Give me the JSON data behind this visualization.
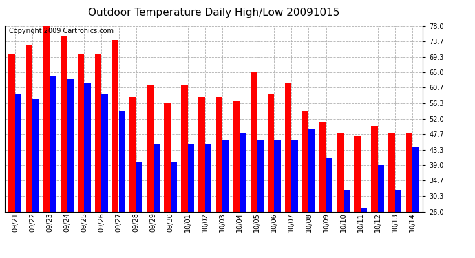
{
  "title": "Outdoor Temperature Daily High/Low 20091015",
  "copyright_text": "Copyright 2009 Cartronics.com",
  "dates": [
    "09/21",
    "09/22",
    "09/23",
    "09/24",
    "09/25",
    "09/26",
    "09/27",
    "09/28",
    "09/29",
    "09/30",
    "10/01",
    "10/02",
    "10/03",
    "10/04",
    "10/05",
    "10/06",
    "10/07",
    "10/08",
    "10/09",
    "10/10",
    "10/11",
    "10/12",
    "10/13",
    "10/14"
  ],
  "highs": [
    70.0,
    72.5,
    78.0,
    75.0,
    70.0,
    70.0,
    74.0,
    58.0,
    61.5,
    56.5,
    61.5,
    58.0,
    58.0,
    57.0,
    65.0,
    59.0,
    62.0,
    54.0,
    51.0,
    48.0,
    47.0,
    50.0,
    48.0,
    48.0
  ],
  "lows": [
    59.0,
    57.5,
    64.0,
    63.0,
    62.0,
    59.0,
    54.0,
    40.0,
    45.0,
    40.0,
    45.0,
    45.0,
    46.0,
    48.0,
    46.0,
    46.0,
    46.0,
    49.0,
    41.0,
    32.0,
    27.0,
    39.0,
    32.0,
    44.0
  ],
  "high_color": "#ff0000",
  "low_color": "#0000ff",
  "bg_color": "#ffffff",
  "plot_bg_color": "#ffffff",
  "grid_color": "#b0b0b0",
  "ymin": 26.0,
  "ymax": 78.0,
  "yticks": [
    26.0,
    30.3,
    34.7,
    39.0,
    43.3,
    47.7,
    52.0,
    56.3,
    60.7,
    65.0,
    69.3,
    73.7,
    78.0
  ],
  "title_fontsize": 11,
  "tick_fontsize": 7,
  "copyright_fontsize": 7,
  "bar_width": 0.38
}
